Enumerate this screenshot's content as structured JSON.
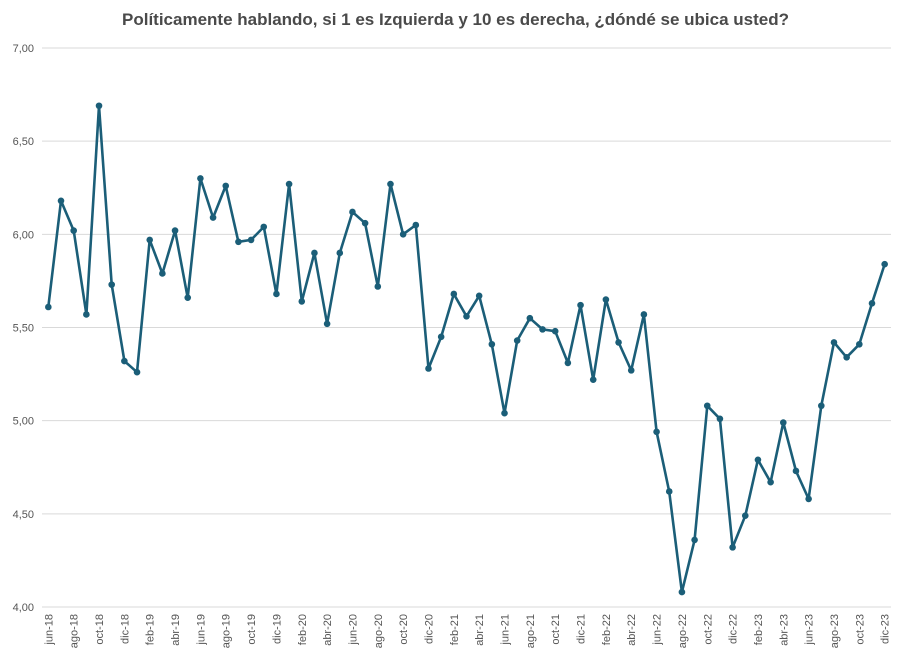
{
  "chart_data": {
    "type": "line",
    "title": "Políticamente hablando, si 1 es Izquierda y 10 es derecha, ¿dóndé se ubica usted?",
    "xlabel": "",
    "ylabel": "",
    "ylim": [
      4.0,
      7.0
    ],
    "yticks": [
      4.0,
      4.5,
      5.0,
      5.5,
      6.0,
      6.5,
      7.0
    ],
    "ytick_labels": [
      "4,00",
      "4,50",
      "5,00",
      "5,50",
      "6,00",
      "6,50",
      "7,00"
    ],
    "x": [
      "jun-18",
      "jul-18",
      "ago-18",
      "sep-18",
      "oct-18",
      "nov-18",
      "dic-18",
      "ene-19",
      "feb-19",
      "mar-19",
      "abr-19",
      "may-19",
      "jun-19",
      "jul-19",
      "ago-19",
      "sep-19",
      "oct-19",
      "nov-19",
      "dic-19",
      "ene-20",
      "feb-20",
      "mar-20",
      "abr-20",
      "may-20",
      "jun-20",
      "jul-20",
      "ago-20",
      "sep-20",
      "oct-20",
      "nov-20",
      "dic-20",
      "ene-21",
      "feb-21",
      "mar-21",
      "abr-21",
      "may-21",
      "jun-21",
      "jul-21",
      "ago-21",
      "sep-21",
      "oct-21",
      "nov-21",
      "dic-21",
      "ene-22",
      "feb-22",
      "mar-22",
      "abr-22",
      "may-22",
      "jun-22",
      "jul-22",
      "ago-22",
      "sep-22",
      "oct-22",
      "nov-22",
      "dic-22",
      "ene-23",
      "feb-23",
      "mar-23",
      "abr-23",
      "may-23",
      "jun-23",
      "jul-23",
      "ago-23",
      "sep-23",
      "oct-23",
      "nov-23",
      "dic-23"
    ],
    "x_tick_labels": [
      "jun-18",
      "ago-18",
      "oct-18",
      "dic-18",
      "feb-19",
      "abr-19",
      "jun-19",
      "ago-19",
      "oct-19",
      "dic-19",
      "feb-20",
      "abr-20",
      "jun-20",
      "ago-20",
      "oct-20",
      "dic-20",
      "feb-21",
      "abr-21",
      "jun-21",
      "ago-21",
      "oct-21",
      "dic-21",
      "feb-22",
      "abr-22",
      "jun-22",
      "ago-22",
      "oct-22",
      "dic-22",
      "feb-23",
      "abr-23",
      "jun-23",
      "ago-23",
      "oct-23",
      "dic-23"
    ],
    "series": [
      {
        "values": [
          5.61,
          6.18,
          6.02,
          5.57,
          6.69,
          5.73,
          5.32,
          5.26,
          5.97,
          5.79,
          6.02,
          5.66,
          6.3,
          6.09,
          6.26,
          5.96,
          5.97,
          6.04,
          5.68,
          6.27,
          5.64,
          5.9,
          5.52,
          5.9,
          6.12,
          6.06,
          5.72,
          6.27,
          6.0,
          6.05,
          5.28,
          5.45,
          5.68,
          5.56,
          5.67,
          5.41,
          5.04,
          5.43,
          5.55,
          5.49,
          5.48,
          5.31,
          5.62,
          5.22,
          5.65,
          5.42,
          5.27,
          5.57,
          4.94,
          4.62,
          4.08,
          4.36,
          5.08,
          5.01,
          4.32,
          4.49,
          4.79,
          4.67,
          4.99,
          4.73,
          4.58,
          5.08,
          5.42,
          5.34,
          5.41,
          5.63,
          5.84
        ]
      }
    ],
    "grid": "horizontal",
    "legend": "none",
    "colors": {
      "line": "#1b5e78",
      "grid": "#d9d9d9",
      "text": "#555555",
      "title": "#4a4a4a"
    }
  }
}
